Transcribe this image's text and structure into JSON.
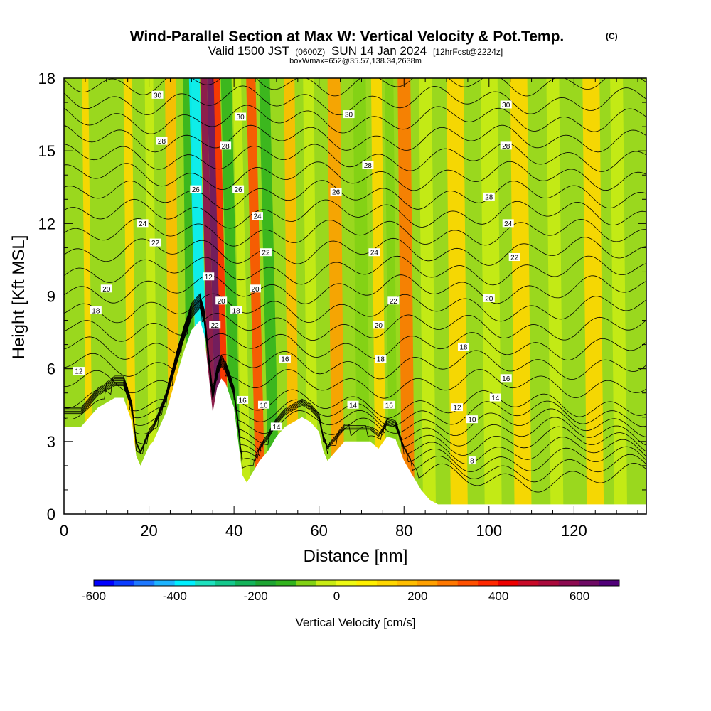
{
  "chart_data": {
    "type": "heatmap",
    "title": "Wind-Parallel Section at Max W: Vertical Velocity & Pot.Temp.",
    "title_mark": "(C)",
    "subtitle": {
      "valid_prefix": "Valid 1500 JST",
      "utc": "(0600Z)",
      "date": "SUN 14 Jan 2024",
      "forecast": "[12hrFcst@2224z]"
    },
    "box_info": "boxWmax=652@35.57,138.34,2638m",
    "xlabel": "Distance [nm]",
    "ylabel": "Height [Kft MSL]",
    "xlim": [
      0,
      137
    ],
    "ylim": [
      0,
      18
    ],
    "x_ticks": [
      0,
      20,
      40,
      60,
      80,
      100,
      120
    ],
    "y_ticks": [
      0,
      3,
      6,
      9,
      12,
      15,
      18
    ],
    "colorbar": {
      "label": "Vertical Velocity [cm/s]",
      "ticks": [
        -600,
        -400,
        -200,
        0,
        200,
        400,
        600
      ],
      "colors": [
        "#0000ff",
        "#0a3cff",
        "#1e78ff",
        "#1eb4ff",
        "#00f0ff",
        "#1ee1be",
        "#14c88c",
        "#14b45a",
        "#1ea532",
        "#32b41e",
        "#82d214",
        "#c8ec14",
        "#eefa14",
        "#fff000",
        "#ffd700",
        "#ffbe00",
        "#ffa000",
        "#ff7800",
        "#ff5000",
        "#ff2800",
        "#ee0000",
        "#c80a28",
        "#aa0a3c",
        "#8c0a50",
        "#6e0a64",
        "#500078"
      ]
    },
    "terrain_profile_x": [
      0,
      4,
      6,
      8,
      12,
      14,
      16,
      17,
      18,
      20,
      21,
      22,
      24,
      26,
      28,
      30,
      32,
      33,
      34,
      35,
      36,
      37,
      38,
      40,
      41,
      42,
      43,
      44,
      46,
      48,
      50,
      52,
      54,
      56,
      58,
      60,
      61,
      62,
      64,
      66,
      68,
      70,
      72,
      74,
      76,
      78,
      80,
      82,
      84,
      86,
      88,
      90,
      92,
      94,
      96,
      100,
      105,
      110,
      115,
      120,
      125,
      130,
      137
    ],
    "terrain_profile_height": [
      3.6,
      3.6,
      4.0,
      4.4,
      4.8,
      4.8,
      3.8,
      2.4,
      2.0,
      2.8,
      3.0,
      3.4,
      4.2,
      5.4,
      6.6,
      7.6,
      8.0,
      7.4,
      5.8,
      4.2,
      5.2,
      5.6,
      5.4,
      4.4,
      3.0,
      1.6,
      1.3,
      1.6,
      2.2,
      2.6,
      3.2,
      3.6,
      3.8,
      4.0,
      3.8,
      3.4,
      2.6,
      2.2,
      2.6,
      3.0,
      3.0,
      3.0,
      3.0,
      2.7,
      3.2,
      3.1,
      2.2,
      1.6,
      1.0,
      0.6,
      0.4,
      0.4,
      0.4,
      0.4,
      0.4,
      0.4,
      0.4,
      0.4,
      0.4,
      0.4,
      0.4,
      0.4,
      0.4
    ],
    "vertical_velocity_bands": [
      {
        "x": 6,
        "w": 1.5,
        "value": 100
      },
      {
        "x": 16,
        "w": 2,
        "value": 60
      },
      {
        "x": 21,
        "w": 2,
        "value": -80
      },
      {
        "x": 26,
        "w": 2.5,
        "value": 140
      },
      {
        "x": 30,
        "w": 2,
        "value": -200
      },
      {
        "x": 33,
        "w": 2.5,
        "value": -420
      },
      {
        "x": 35.2,
        "w": 1.6,
        "value": 520
      },
      {
        "x": 36.8,
        "w": 1.6,
        "value": 560
      },
      {
        "x": 38.3,
        "w": 1.5,
        "value": 320
      },
      {
        "x": 40.5,
        "w": 2.5,
        "value": -180
      },
      {
        "x": 43,
        "w": 2,
        "value": -100
      },
      {
        "x": 46.3,
        "w": 2.2,
        "value": 260
      },
      {
        "x": 49.5,
        "w": 2.5,
        "value": -170
      },
      {
        "x": 54,
        "w": 2.5,
        "value": 120
      },
      {
        "x": 58.5,
        "w": 2.5,
        "value": -100
      },
      {
        "x": 64.5,
        "w": 3,
        "value": 180
      },
      {
        "x": 70.5,
        "w": 3,
        "value": -140
      },
      {
        "x": 74.5,
        "w": 2.5,
        "value": 90
      },
      {
        "x": 77.5,
        "w": 2,
        "value": -130
      },
      {
        "x": 81,
        "w": 3,
        "value": 200
      },
      {
        "x": 86,
        "w": 3,
        "value": -90
      },
      {
        "x": 93,
        "w": 4,
        "value": 70
      },
      {
        "x": 101,
        "w": 4,
        "value": -90
      },
      {
        "x": 108,
        "w": 4,
        "value": 70
      },
      {
        "x": 116,
        "w": 3,
        "value": -60
      },
      {
        "x": 125,
        "w": 4,
        "value": 60
      },
      {
        "x": 131,
        "w": 3,
        "value": -70
      }
    ],
    "theta_contours": [
      {
        "label": "8",
        "level": 8
      },
      {
        "label": "10",
        "level": 10
      },
      {
        "label": "12",
        "level": 12
      },
      {
        "label": "14",
        "level": 14
      },
      {
        "label": "16",
        "level": 16
      },
      {
        "label": "18",
        "level": 18
      },
      {
        "label": "20",
        "level": 20
      },
      {
        "label": "22",
        "level": 22
      },
      {
        "label": "24",
        "level": 24
      },
      {
        "label": "26",
        "level": 26
      },
      {
        "label": "28",
        "level": 28
      },
      {
        "label": "30",
        "level": 30
      }
    ],
    "contour_label_points": [
      {
        "text": "30",
        "x": 22,
        "y": 17.3
      },
      {
        "text": "28",
        "x": 23,
        "y": 15.4
      },
      {
        "text": "24",
        "x": 18.5,
        "y": 12.0
      },
      {
        "text": "22",
        "x": 21.5,
        "y": 11.2
      },
      {
        "text": "20",
        "x": 10,
        "y": 9.3
      },
      {
        "text": "18",
        "x": 7.5,
        "y": 8.4
      },
      {
        "text": "12",
        "x": 3.5,
        "y": 5.9
      },
      {
        "text": "26",
        "x": 31,
        "y": 13.4
      },
      {
        "text": "28",
        "x": 38,
        "y": 15.2
      },
      {
        "text": "30",
        "x": 41.5,
        "y": 16.4
      },
      {
        "text": "26",
        "x": 41,
        "y": 13.4
      },
      {
        "text": "24",
        "x": 45.5,
        "y": 12.3
      },
      {
        "text": "22",
        "x": 47.5,
        "y": 10.8
      },
      {
        "text": "20",
        "x": 45,
        "y": 9.3
      },
      {
        "text": "18",
        "x": 40.5,
        "y": 8.4
      },
      {
        "text": "20",
        "x": 37,
        "y": 8.8
      },
      {
        "text": "22",
        "x": 35.5,
        "y": 7.8
      },
      {
        "text": "12",
        "x": 34,
        "y": 9.8
      },
      {
        "text": "16",
        "x": 52,
        "y": 6.4
      },
      {
        "text": "16",
        "x": 42,
        "y": 4.7
      },
      {
        "text": "16",
        "x": 47,
        "y": 4.5
      },
      {
        "text": "14",
        "x": 50,
        "y": 3.6
      },
      {
        "text": "30",
        "x": 67,
        "y": 16.5
      },
      {
        "text": "28",
        "x": 71.5,
        "y": 14.4
      },
      {
        "text": "26",
        "x": 64,
        "y": 13.3
      },
      {
        "text": "24",
        "x": 73,
        "y": 10.8
      },
      {
        "text": "22",
        "x": 77.5,
        "y": 8.8
      },
      {
        "text": "20",
        "x": 74,
        "y": 7.8
      },
      {
        "text": "18",
        "x": 74.5,
        "y": 6.4
      },
      {
        "text": "16",
        "x": 76.5,
        "y": 4.5
      },
      {
        "text": "14",
        "x": 68,
        "y": 4.5
      },
      {
        "text": "30",
        "x": 104,
        "y": 16.9
      },
      {
        "text": "28",
        "x": 104,
        "y": 15.2
      },
      {
        "text": "28",
        "x": 100,
        "y": 13.1
      },
      {
        "text": "24",
        "x": 104.5,
        "y": 12.0
      },
      {
        "text": "22",
        "x": 106,
        "y": 10.6
      },
      {
        "text": "20",
        "x": 100,
        "y": 8.9
      },
      {
        "text": "18",
        "x": 94,
        "y": 6.9
      },
      {
        "text": "16",
        "x": 104,
        "y": 5.6
      },
      {
        "text": "14",
        "x": 101.5,
        "y": 4.8
      },
      {
        "text": "12",
        "x": 92.5,
        "y": 4.4
      },
      {
        "text": "10",
        "x": 96,
        "y": 3.9
      },
      {
        "text": "8",
        "x": 96,
        "y": 2.2
      }
    ]
  }
}
